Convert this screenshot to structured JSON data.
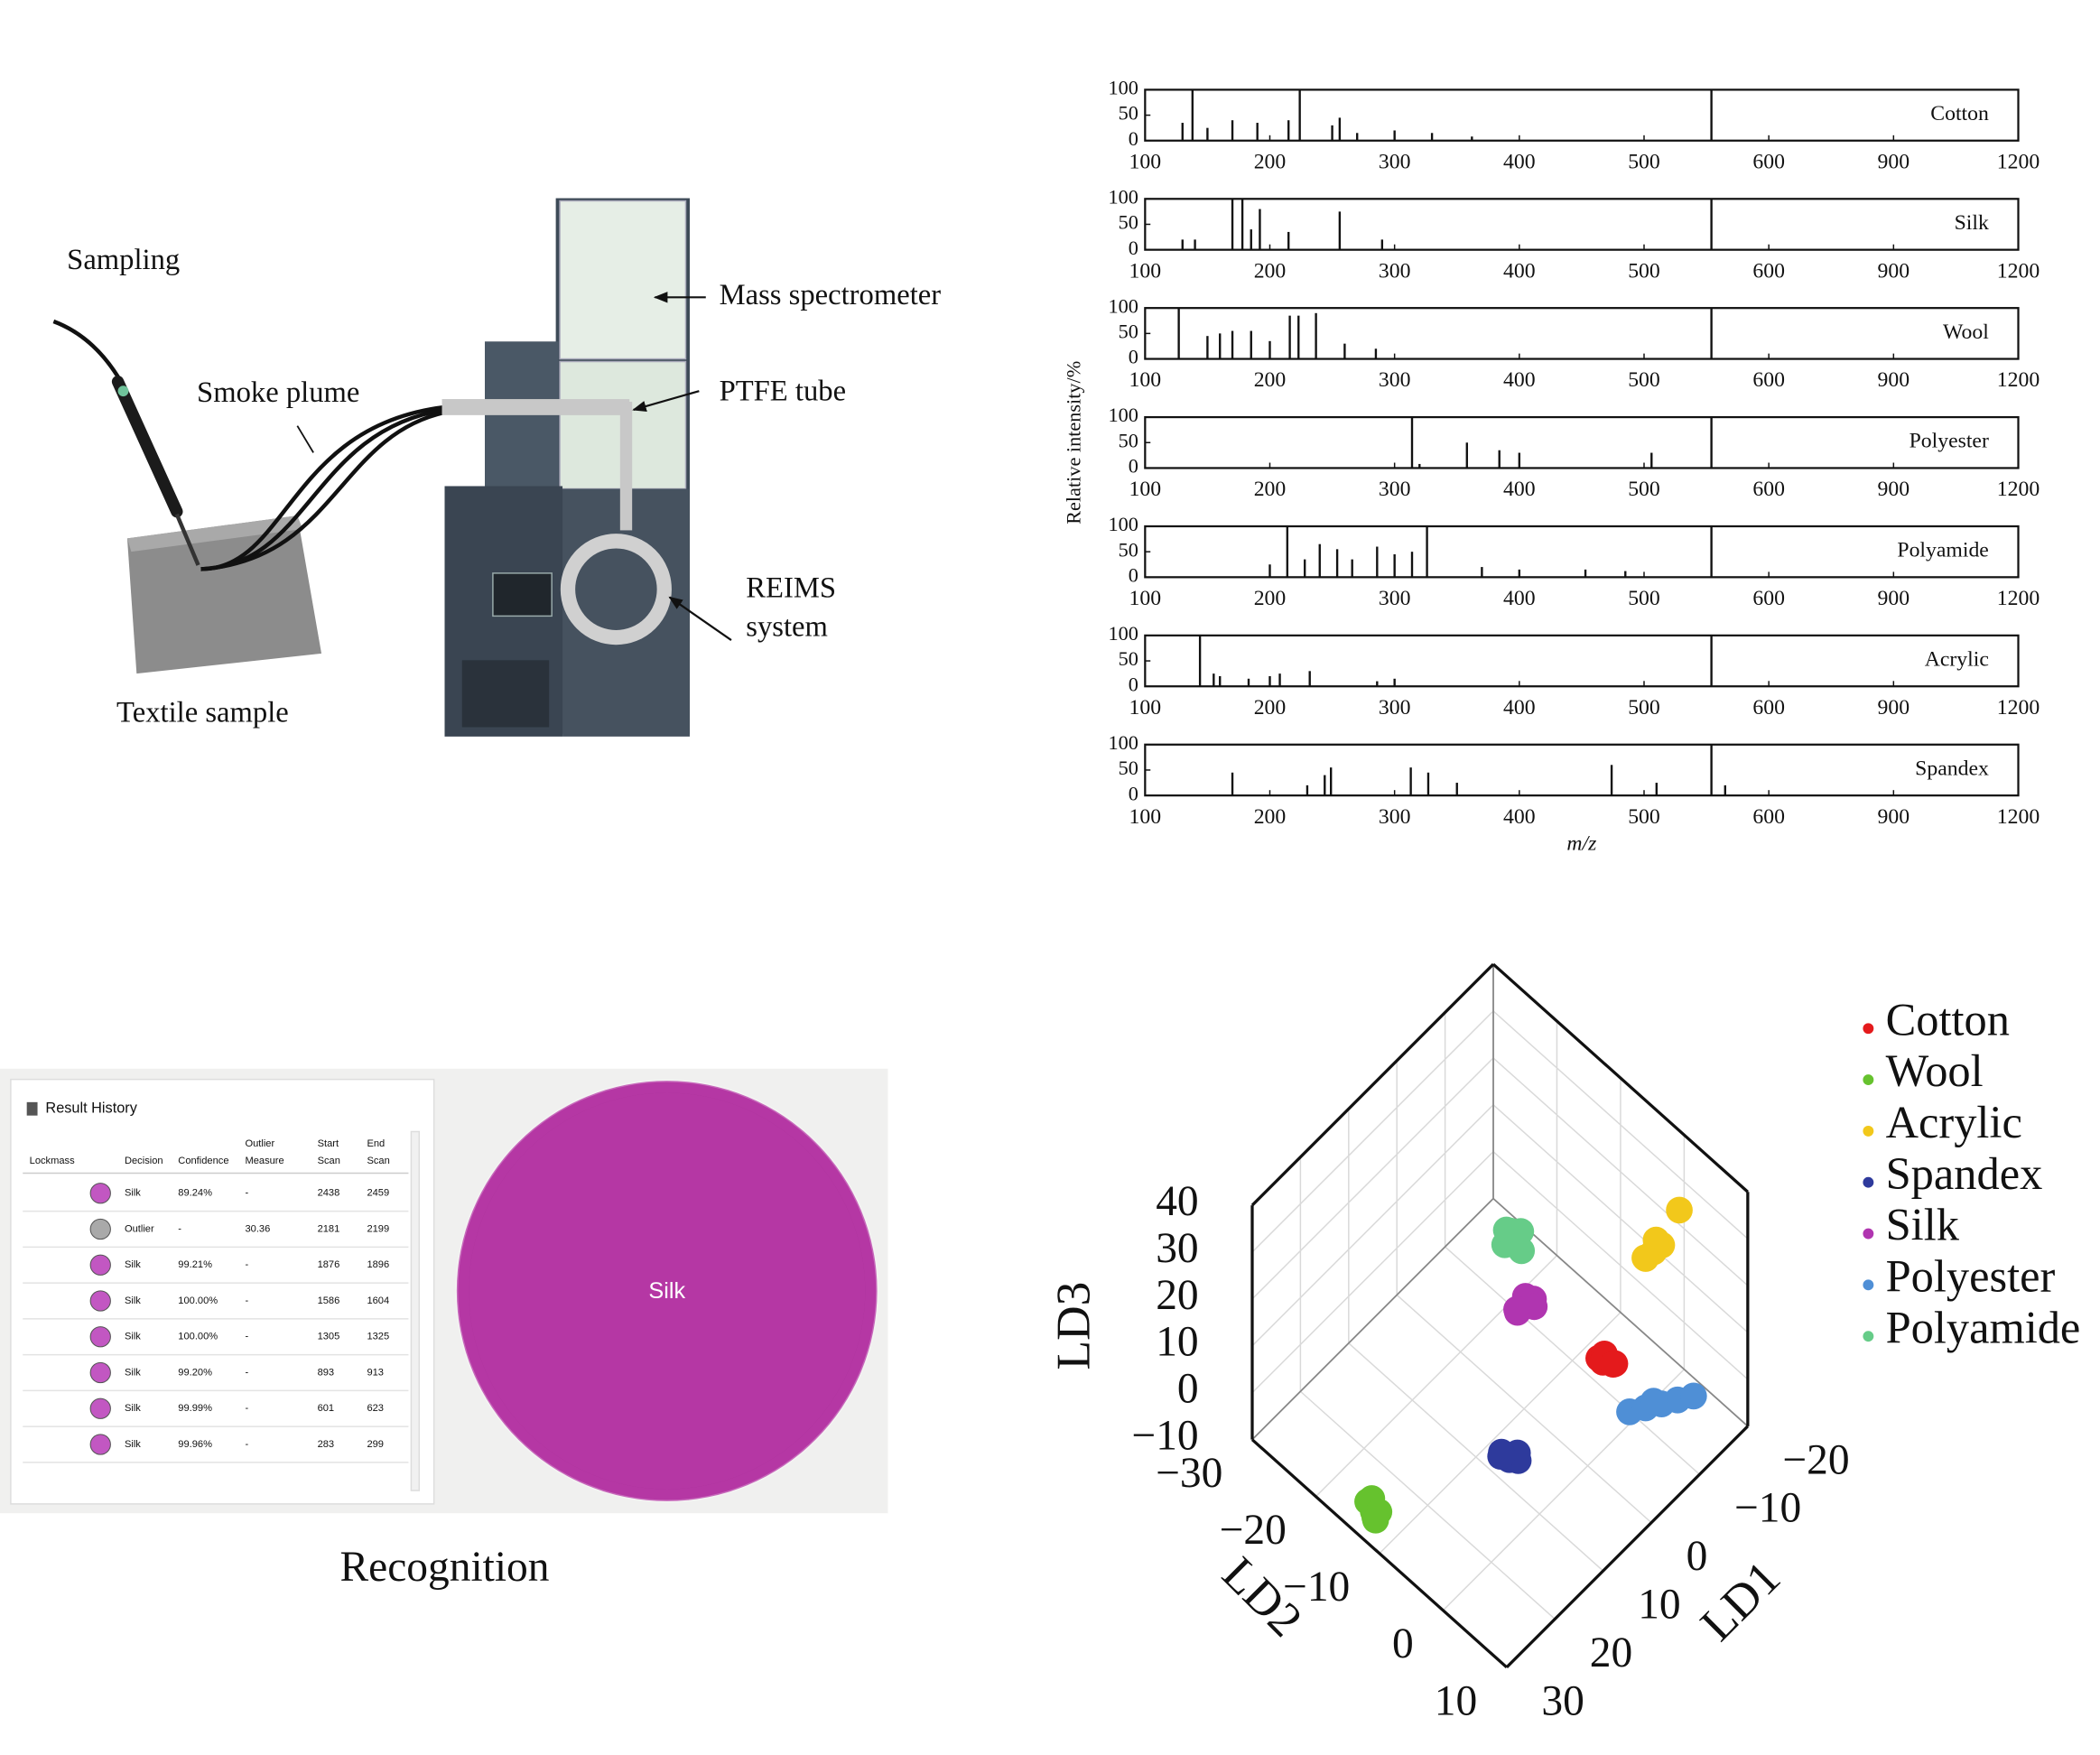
{
  "diagram": {
    "sampling": "Sampling",
    "smoke_plume": "Smoke plume",
    "mass_spectrometer": "Mass spectrometer",
    "ptfe_tube": "PTFE tube",
    "reims": [
      "REIMS",
      "system"
    ],
    "textile_sample": "Textile sample"
  },
  "recognition": {
    "panel_title": "Result History",
    "headers": [
      [
        "Lockmass"
      ],
      [
        "Decision"
      ],
      [
        "Confidence"
      ],
      [
        "Outlier",
        "Measure"
      ],
      [
        "Start",
        "Scan"
      ],
      [
        "End",
        "Scan"
      ]
    ],
    "rows": [
      {
        "color": "#c257c2",
        "cells": [
          "Silk",
          "89.24%",
          "-",
          2438,
          2459
        ]
      },
      {
        "color": "#a9a9a9",
        "cells": [
          "Outlier",
          "-",
          "30.36",
          2181,
          2199
        ]
      },
      {
        "color": "#c257c2",
        "cells": [
          "Silk",
          "99.21%",
          "-",
          1876,
          1896
        ]
      },
      {
        "color": "#c257c2",
        "cells": [
          "Silk",
          "100.00%",
          "-",
          1586,
          1604
        ]
      },
      {
        "color": "#c257c2",
        "cells": [
          "Silk",
          "100.00%",
          "-",
          1305,
          1325
        ]
      },
      {
        "color": "#c257c2",
        "cells": [
          "Silk",
          "99.20%",
          "-",
          893,
          913
        ]
      },
      {
        "color": "#c257c2",
        "cells": [
          "Silk",
          "99.99%",
          "-",
          601,
          623
        ]
      },
      {
        "color": "#c257c2",
        "cells": [
          "Silk",
          "99.96%",
          "-",
          283,
          299
        ]
      }
    ],
    "result": "Silk",
    "result_color": "#b537a4",
    "caption": "Recognition"
  },
  "chart_data": [
    {
      "type": "bar",
      "label": "Cotton",
      "color": "#111111",
      "xlim": [
        100,
        1200
      ],
      "ylim": [
        0,
        100
      ],
      "xticks": [
        100,
        200,
        300,
        400,
        500,
        600,
        900,
        1200
      ],
      "yticks": [
        0,
        50,
        100
      ],
      "x": [
        130,
        138,
        150,
        170,
        190,
        215,
        224,
        250,
        256,
        270,
        300,
        330,
        362,
        554
      ],
      "values": [
        35,
        100,
        25,
        40,
        35,
        40,
        100,
        30,
        45,
        15,
        20,
        15,
        8,
        100
      ]
    },
    {
      "type": "bar",
      "label": "Silk",
      "color": "#111111",
      "xlim": [
        100,
        1200
      ],
      "ylim": [
        0,
        100
      ],
      "xticks": [
        100,
        200,
        300,
        400,
        500,
        600,
        900,
        1200
      ],
      "yticks": [
        0,
        50,
        100
      ],
      "x": [
        130,
        140,
        170,
        178,
        185,
        192,
        215,
        256,
        290,
        554
      ],
      "values": [
        20,
        20,
        100,
        100,
        40,
        80,
        35,
        75,
        20,
        100
      ]
    },
    {
      "type": "bar",
      "label": "Wool",
      "color": "#111111",
      "xlim": [
        100,
        1200
      ],
      "ylim": [
        0,
        100
      ],
      "xticks": [
        100,
        200,
        300,
        400,
        500,
        600,
        900,
        1200
      ],
      "yticks": [
        0,
        50,
        100
      ],
      "x": [
        127,
        150,
        160,
        170,
        185,
        200,
        216,
        223,
        237,
        260,
        285,
        554
      ],
      "values": [
        100,
        45,
        50,
        55,
        55,
        35,
        85,
        85,
        90,
        30,
        20,
        100
      ]
    },
    {
      "type": "bar",
      "label": "Polyester",
      "color": "#111111",
      "xlim": [
        100,
        1200
      ],
      "ylim": [
        0,
        100
      ],
      "xticks": [
        100,
        200,
        300,
        400,
        500,
        600,
        900,
        1200
      ],
      "yticks": [
        0,
        50,
        100
      ],
      "ylabel": "Relative intensity/%",
      "x": [
        314,
        320,
        358,
        384,
        400,
        506,
        554
      ],
      "values": [
        100,
        8,
        50,
        35,
        30,
        30,
        100
      ]
    },
    {
      "type": "bar",
      "label": "Polyamide",
      "color": "#111111",
      "xlim": [
        100,
        1200
      ],
      "ylim": [
        0,
        100
      ],
      "xticks": [
        100,
        200,
        300,
        400,
        500,
        600,
        900,
        1200
      ],
      "yticks": [
        0,
        50,
        100
      ],
      "x": [
        200,
        214,
        228,
        240,
        254,
        266,
        286,
        300,
        314,
        326,
        370,
        400,
        453,
        485,
        554
      ],
      "values": [
        25,
        100,
        35,
        65,
        55,
        35,
        60,
        45,
        50,
        100,
        20,
        15,
        15,
        12,
        100
      ]
    },
    {
      "type": "bar",
      "label": "Acrylic",
      "color": "#111111",
      "xlim": [
        100,
        1200
      ],
      "ylim": [
        0,
        100
      ],
      "xticks": [
        100,
        200,
        300,
        400,
        500,
        600,
        900,
        1200
      ],
      "yticks": [
        0,
        50,
        100
      ],
      "x": [
        144,
        155,
        160,
        183,
        200,
        208,
        232,
        286,
        300,
        554
      ],
      "values": [
        100,
        25,
        20,
        15,
        20,
        25,
        30,
        10,
        15,
        100
      ]
    },
    {
      "type": "bar",
      "label": "Spandex",
      "color": "#111111",
      "xlim": [
        100,
        1200
      ],
      "ylim": [
        0,
        100
      ],
      "xticks": [
        100,
        200,
        300,
        400,
        500,
        600,
        900,
        1200
      ],
      "yticks": [
        0,
        50,
        100
      ],
      "xlabel": "m/z",
      "x": [
        170,
        230,
        244,
        249,
        313,
        327,
        350,
        474,
        510,
        554,
        565
      ],
      "values": [
        45,
        20,
        40,
        55,
        55,
        45,
        25,
        60,
        25,
        100,
        20
      ]
    },
    {
      "type": "scatter3d",
      "xlabel": "LD1",
      "ylabel": "LD2",
      "zlabel": "LD3",
      "grid": true,
      "xlim": [
        -20,
        30
      ],
      "ylim": [
        -30,
        10
      ],
      "zlim": [
        -10,
        40
      ],
      "xticks": [
        {
          "value": -20,
          "label": "−20"
        },
        {
          "value": -10,
          "label": "−10"
        },
        0,
        10,
        20,
        30
      ],
      "yticks": [
        {
          "value": -30,
          "label": "−30"
        },
        {
          "value": -20,
          "label": "−20"
        },
        {
          "value": -10,
          "label": "−10"
        },
        0,
        10
      ],
      "zticks": [
        {
          "value": -10,
          "label": "−10"
        },
        0,
        10,
        20,
        30,
        40
      ],
      "series": [
        {
          "name": "Cotton",
          "color": "#e41a1c",
          "x": [
            0,
            1,
            -1,
            0.5,
            -0.5,
            0
          ],
          "y": [
            3,
            2.5,
            3.5,
            3,
            2,
            4
          ],
          "z": [
            16,
            17,
            15,
            18,
            14,
            16.5
          ]
        },
        {
          "name": "Wool",
          "color": "#66c22e",
          "x": [
            26,
            27,
            25,
            26.5,
            25.5,
            27.5
          ],
          "y": [
            -14,
            -13,
            -15,
            -14.5,
            -13.5,
            -12.5
          ],
          "z": [
            -10,
            -9,
            -9.5,
            -8,
            -10,
            -8.5
          ]
        },
        {
          "name": "Acrylic",
          "color": "#f2c81b",
          "x": [
            -15,
            -14,
            -16,
            -15.5,
            -14.5,
            -19
          ],
          "y": [
            -1,
            -1.5,
            -0.5,
            -1,
            -2,
            0
          ],
          "z": [
            19,
            18,
            20,
            21,
            17,
            25
          ]
        },
        {
          "name": "Spandex",
          "color": "#2e3a9c",
          "x": [
            7,
            6,
            8,
            7.5,
            6.5,
            8.5
          ],
          "y": [
            -7,
            -6.5,
            -7.5,
            -8,
            -6,
            -7
          ],
          "z": [
            -10,
            -9,
            -8,
            -10,
            -9.5,
            -7.5
          ]
        },
        {
          "name": "Silk",
          "color": "#b035b0",
          "x": [
            5,
            4,
            6,
            5,
            4.5,
            5.5
          ],
          "y": [
            -6,
            -5.5,
            -6.5,
            -6,
            -5,
            -7
          ],
          "z": [
            22,
            23,
            21,
            24,
            22.5,
            20.5
          ]
        },
        {
          "name": "Polyester",
          "color": "#4f8fd6",
          "x": [
            -10,
            -12,
            -14,
            -16,
            -18,
            -13
          ],
          "y": [
            -1,
            0,
            1,
            2,
            3,
            0.5
          ],
          "z": [
            -10,
            -10,
            -10,
            -10,
            -10,
            -9
          ]
        },
        {
          "name": "Polyamide",
          "color": "#66cc88",
          "x": [
            5,
            4,
            6,
            5.5,
            4.5,
            5
          ],
          "y": [
            -8,
            -7.5,
            -8.5,
            -8,
            -7,
            -9
          ],
          "z": [
            34,
            35,
            33,
            36,
            32,
            34.5
          ]
        }
      ]
    }
  ]
}
